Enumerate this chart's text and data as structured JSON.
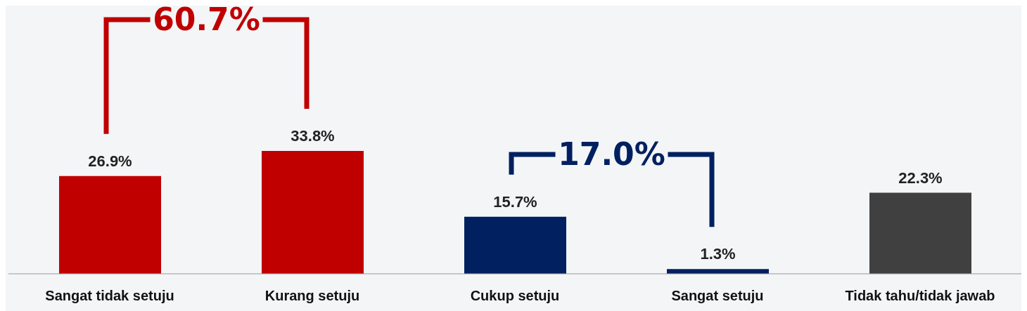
{
  "chart_data": {
    "type": "bar",
    "categories": [
      "Sangat tidak setuju",
      "Kurang setuju",
      "Cukup setuju",
      "Sangat setuju",
      "Tidak tahu/tidak jawab"
    ],
    "values": [
      26.9,
      33.8,
      15.7,
      1.3,
      22.3
    ],
    "colors": [
      "#c00000",
      "#c00000",
      "#002060",
      "#002060",
      "#404040"
    ],
    "value_labels": [
      "26.9%",
      "33.8%",
      "15.7%",
      "1.3%",
      "22.3%"
    ],
    "annotations": [
      "60.7%",
      "17.0%"
    ],
    "grid": false,
    "legend": false
  }
}
